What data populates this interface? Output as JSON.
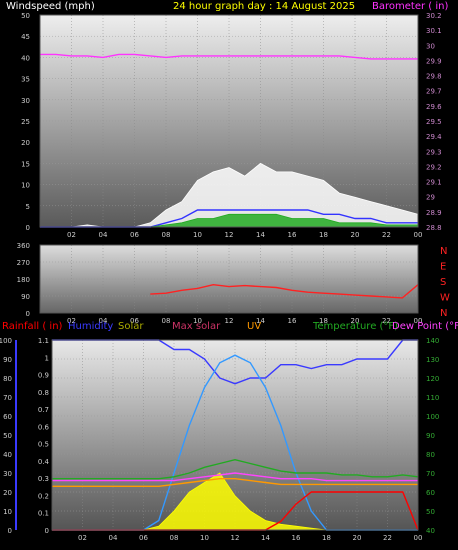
{
  "header": {
    "left_label": "Windspeed (mph)",
    "center_label": "24 hour graph day : 14 August 2025",
    "right_label": "Barometer ( in)"
  },
  "bottom_header": {
    "rainfall": "Rainfall ( in)",
    "humidity": "Humidity",
    "solar": "Solar",
    "max_solar": "Max solar",
    "uv": "UV",
    "temperature": "Temperature (°F)",
    "dew_point": "Dew Point (°F"
  },
  "colors": {
    "background": "#000000",
    "windspeed_label": "#ffffff",
    "title": "#ffff00",
    "barometer": "#ff33ff",
    "wind_avg": "#3333ff",
    "wind_gust": "#ffffff",
    "wind_green": "#22aa22",
    "wind_dir": "#ff2222",
    "rainfall": "#ff0000",
    "humidity": "#3a3aff",
    "solar": "#ffff00",
    "max_solar": "#3399ff",
    "uv": "#ff9900",
    "temperature": "#22aa22",
    "dew_point": "#ff44ff"
  },
  "chart_data": [
    {
      "type": "line",
      "name": "wind_barometer",
      "x_ticks": [
        "02",
        "04",
        "06",
        "08",
        "10",
        "12",
        "14",
        "16",
        "18",
        "20",
        "22",
        "00"
      ],
      "y_left_ticks": [
        "0",
        "5",
        "10",
        "15",
        "20",
        "25",
        "30",
        "35",
        "40",
        "45",
        "50"
      ],
      "y_left_lim": [
        0,
        50
      ],
      "y_right_ticks": [
        "28.8",
        "28.9",
        "29",
        "29.1",
        "29.2",
        "29.3",
        "29.4",
        "29.5",
        "29.6",
        "29.7",
        "29.8",
        "29.9",
        "30",
        "30.1",
        "30.2"
      ],
      "y_right_lim": [
        28.8,
        30.2
      ],
      "x_hours": [
        0,
        1,
        2,
        3,
        4,
        5,
        6,
        7,
        8,
        9,
        10,
        11,
        12,
        13,
        14,
        15,
        16,
        17,
        18,
        19,
        20,
        21,
        22,
        23,
        24
      ],
      "series": [
        {
          "key": "barometer",
          "axis": "right",
          "values": [
            29.94,
            29.94,
            29.93,
            29.93,
            29.92,
            29.94,
            29.94,
            29.93,
            29.92,
            29.93,
            29.93,
            29.93,
            29.93,
            29.93,
            29.93,
            29.93,
            29.93,
            29.93,
            29.93,
            29.93,
            29.92,
            29.91,
            29.91,
            29.91,
            29.91
          ]
        },
        {
          "key": "wind_gust",
          "axis": "left",
          "values": [
            0,
            0,
            0,
            0.5,
            0,
            0,
            0,
            1,
            4,
            6,
            11,
            13,
            14,
            12,
            15,
            13,
            13,
            12,
            11,
            8,
            7,
            6,
            5,
            4,
            3
          ]
        },
        {
          "key": "wind_avg",
          "axis": "left",
          "values": [
            0,
            0,
            0,
            0,
            0,
            0,
            0,
            0,
            1,
            2,
            4,
            4,
            4,
            4,
            4,
            4,
            4,
            4,
            3,
            3,
            2,
            2,
            1,
            1,
            1
          ]
        },
        {
          "key": "wind_green",
          "axis": "left",
          "values": [
            0,
            0,
            0,
            0,
            0,
            0,
            0,
            0,
            0.5,
            1,
            2,
            2,
            3,
            3,
            3,
            3,
            2,
            2,
            2,
            1,
            1,
            1,
            0.5,
            0.5,
            0.5
          ]
        }
      ]
    },
    {
      "type": "line",
      "name": "wind_direction",
      "x_ticks": [
        "02",
        "04",
        "06",
        "08",
        "10",
        "12",
        "14",
        "16",
        "18",
        "20",
        "22",
        "00"
      ],
      "y_left_ticks": [
        "0",
        "90",
        "180",
        "270",
        "360"
      ],
      "y_left_lim": [
        0,
        360
      ],
      "y_right_ticks": [
        "N",
        "E",
        "S",
        "W",
        "N"
      ],
      "x_hours": [
        0,
        1,
        2,
        3,
        4,
        5,
        6,
        7,
        8,
        9,
        10,
        11,
        12,
        13,
        14,
        15,
        16,
        17,
        18,
        19,
        20,
        21,
        22,
        23,
        24
      ],
      "series": [
        {
          "key": "wind_dir",
          "values": [
            null,
            null,
            null,
            null,
            null,
            null,
            null,
            100,
            105,
            120,
            130,
            150,
            140,
            145,
            140,
            135,
            120,
            110,
            105,
            100,
            95,
            90,
            85,
            80,
            150
          ]
        }
      ]
    },
    {
      "type": "line",
      "name": "rain_humidity_solar_temp",
      "x_ticks": [
        "02",
        "04",
        "06",
        "08",
        "10",
        "12",
        "14",
        "16",
        "18",
        "20",
        "22",
        "00"
      ],
      "y_left_ticks": [
        "0",
        "10",
        "20",
        "30",
        "40",
        "50",
        "60",
        "70",
        "80",
        "90",
        "100"
      ],
      "y_left_lim": [
        0,
        100
      ],
      "y_rain_ticks": [
        "0",
        "0.1",
        "0.2",
        "0.3",
        "0.4",
        "0.5",
        "0.6",
        "0.7",
        "0.8",
        "0.9",
        "1",
        "1.1"
      ],
      "y_rain_lim": [
        0,
        1.1
      ],
      "y_right_ticks": [
        "40",
        "50",
        "60",
        "70",
        "80",
        "90",
        "100",
        "110",
        "120",
        "130",
        "140"
      ],
      "y_right_lim": [
        40,
        140
      ],
      "x_hours": [
        0,
        1,
        2,
        3,
        4,
        5,
        6,
        7,
        8,
        9,
        10,
        11,
        12,
        13,
        14,
        15,
        16,
        17,
        18,
        19,
        20,
        21,
        22,
        23,
        24
      ],
      "series": [
        {
          "key": "humidity",
          "axis": "left",
          "values": [
            100,
            100,
            100,
            100,
            100,
            100,
            100,
            100,
            95,
            95,
            90,
            80,
            77,
            80,
            80,
            87,
            87,
            85,
            87,
            87,
            90,
            90,
            90,
            100,
            100
          ]
        },
        {
          "key": "max_solar",
          "axis": "left",
          "values": [
            0,
            0,
            0,
            0,
            0,
            0,
            0,
            5,
            30,
            55,
            75,
            88,
            92,
            88,
            75,
            55,
            30,
            10,
            0,
            0,
            0,
            0,
            0,
            0,
            0
          ]
        },
        {
          "key": "solar",
          "axis": "left",
          "values": [
            0,
            0,
            0,
            0,
            0,
            0,
            0,
            2,
            10,
            20,
            25,
            30,
            18,
            10,
            5,
            3,
            2,
            1,
            0,
            0,
            0,
            0,
            0,
            0,
            0
          ]
        },
        {
          "key": "rainfall",
          "axis": "rain",
          "values": [
            0,
            0,
            0,
            0,
            0,
            0,
            0,
            0,
            0,
            0,
            0,
            0,
            0,
            0,
            0,
            0.05,
            0.15,
            0.22,
            0.22,
            0.22,
            0.22,
            0.22,
            0.22,
            0.22,
            0
          ]
        },
        {
          "key": "temperature",
          "axis": "right",
          "values": [
            67,
            67,
            67,
            67,
            67,
            67,
            67,
            67,
            68,
            70,
            73,
            75,
            77,
            75,
            73,
            71,
            70,
            70,
            70,
            69,
            69,
            68,
            68,
            69,
            68
          ]
        },
        {
          "key": "dew_point",
          "axis": "right",
          "values": [
            66,
            66,
            66,
            66,
            66,
            66,
            66,
            66,
            66,
            67,
            68,
            69,
            70,
            69,
            68,
            67,
            67,
            67,
            66,
            66,
            66,
            66,
            66,
            66,
            66
          ]
        },
        {
          "key": "uv",
          "axis": "right",
          "values": [
            63,
            63,
            63,
            63,
            63,
            63,
            63,
            63,
            64,
            65,
            66,
            67,
            67,
            66,
            65,
            64,
            64,
            64,
            64,
            64,
            64,
            64,
            64,
            64,
            64
          ]
        }
      ]
    }
  ]
}
